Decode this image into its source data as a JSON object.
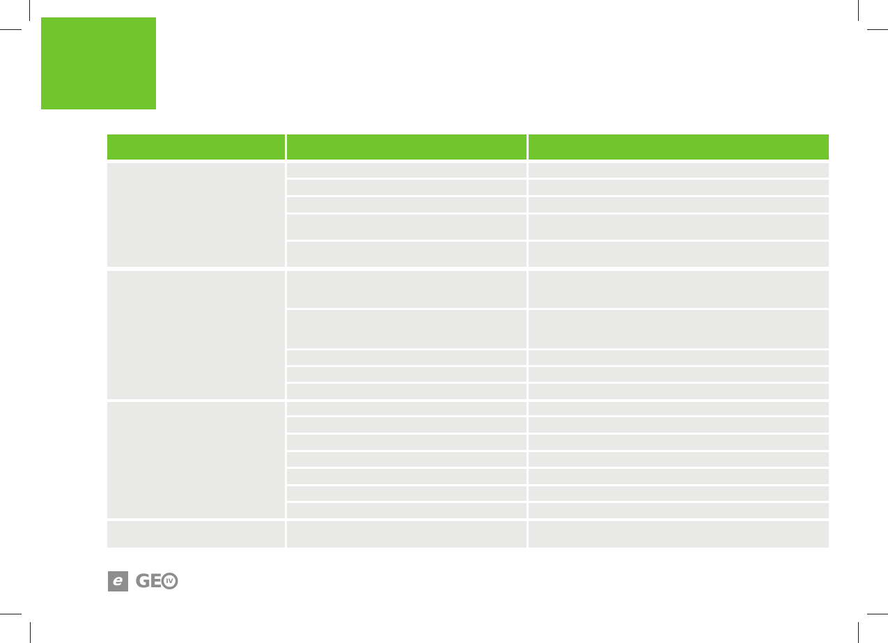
{
  "colors": {
    "accent_green": "#72c62d",
    "cell_gray": "#e9e9e8",
    "logo_gray": "#8d8d8d",
    "crop_mark_black": "#1a1a1a"
  },
  "table": {
    "header": [
      "",
      "",
      ""
    ],
    "groups": [
      {
        "label": "",
        "rows": [
          {
            "col2": "",
            "col3": ""
          },
          {
            "col2": "",
            "col3": ""
          },
          {
            "col2": "",
            "col3": ""
          },
          {
            "col2": "",
            "col3": ""
          },
          {
            "col2": "",
            "col3": ""
          }
        ]
      },
      {
        "label": "",
        "rows": [
          {
            "col2": "",
            "col3": ""
          },
          {
            "col2": "",
            "col3": ""
          },
          {
            "col2": "",
            "col3": ""
          },
          {
            "col2": "",
            "col3": ""
          },
          {
            "col2": "",
            "col3": ""
          }
        ]
      },
      {
        "label": "",
        "rows": [
          {
            "col2": "",
            "col3": ""
          },
          {
            "col2": "",
            "col3": ""
          },
          {
            "col2": "",
            "col3": ""
          },
          {
            "col2": "",
            "col3": ""
          },
          {
            "col2": "",
            "col3": ""
          },
          {
            "col2": "",
            "col3": ""
          },
          {
            "col2": "",
            "col3": ""
          }
        ]
      },
      {
        "label": "",
        "rows": [
          {
            "col2": "",
            "col3": ""
          }
        ]
      }
    ]
  },
  "footer": {
    "e_logo_glyph": "e",
    "geo_letters": "GE",
    "geo_roman_numeral": "IV"
  }
}
